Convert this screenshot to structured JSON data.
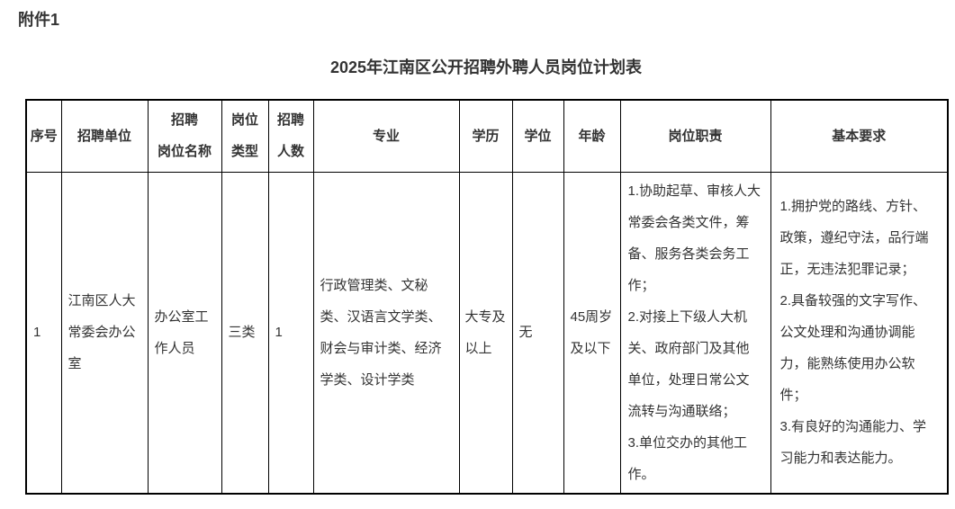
{
  "page": {
    "attachment_label": "附件1",
    "title": "2025年江南区公开招聘外聘人员岗位计划表"
  },
  "colors": {
    "text": "#333333",
    "table_border": "#000000",
    "background": "#ffffff",
    "page_bottom_line": "#d9d9d9"
  },
  "table": {
    "headers": [
      {
        "id": "xuhao",
        "label": "序号"
      },
      {
        "id": "danwei",
        "label": "招聘单位"
      },
      {
        "id": "mingcheng",
        "label": "招聘\n岗位名称"
      },
      {
        "id": "leixing",
        "label": "岗位\n类型"
      },
      {
        "id": "renshu",
        "label": "招聘\n人数"
      },
      {
        "id": "zhuanye",
        "label": "专业"
      },
      {
        "id": "xueli",
        "label": "学历"
      },
      {
        "id": "xuewei",
        "label": "学位"
      },
      {
        "id": "nianling",
        "label": "年龄"
      },
      {
        "id": "zhize",
        "label": "岗位职责"
      },
      {
        "id": "yaoqiu",
        "label": "基本要求"
      }
    ],
    "rows": [
      {
        "cells": [
          "1",
          "江南区人大常委会办公室",
          "办公室工作人员",
          "三类",
          "1",
          "行政管理类、文秘类、汉语言文学类、财会与审计类、经济学类、设计学类",
          "大专及以上",
          "无",
          "45周岁及以下",
          "1.协助起草、审核人大常委会各类文件，筹备、服务各类会务工作；\n2.对接上下级人大机关、政府部门及其他单位，处理日常公文流转与沟通联络；\n3.单位交办的其他工作。",
          "1.拥护党的路线、方针、政策，遵纪守法，品行端正，无违法犯罪记录；\n2.具备较强的文字写作、公文处理和沟通协调能力，能熟练使用办公软件；\n3.有良好的沟通能力、学习能力和表达能力。"
        ]
      }
    ]
  }
}
